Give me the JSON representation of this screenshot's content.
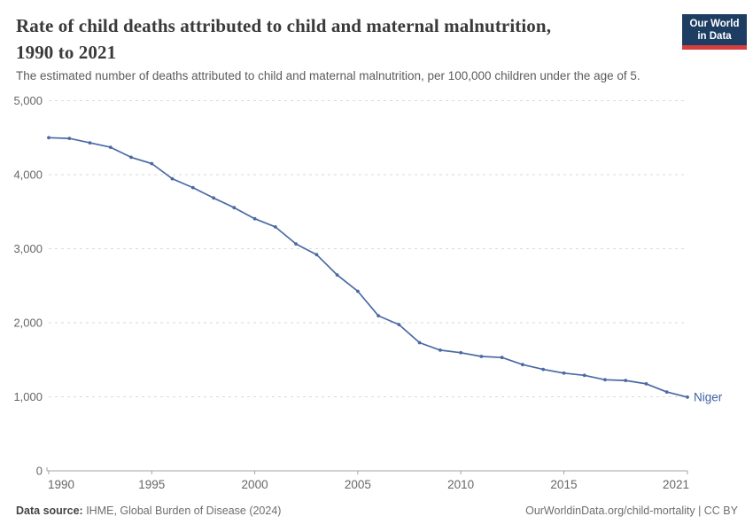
{
  "header": {
    "title_lines": [
      "Rate of child deaths attributed to child and maternal malnutrition,",
      "1990 to 2021"
    ],
    "subtitle": "The estimated number of deaths attributed to child and maternal malnutrition, per 100,000 children under the age of 5.",
    "logo": {
      "line1": "Our World",
      "line2": "in Data",
      "bg_color": "#1d3d63",
      "stripe_color": "#d93e3e"
    }
  },
  "chart_data": {
    "type": "line",
    "title": "Rate of child deaths attributed to child and maternal malnutrition, 1990 to 2021",
    "xlabel": "",
    "ylabel": "",
    "xlim": [
      1990,
      2021
    ],
    "ylim": [
      0,
      5000
    ],
    "grid": "horizontal-dashed",
    "legend": "end-of-line-label",
    "x_ticks": [
      1990,
      1995,
      2000,
      2005,
      2010,
      2015,
      2021
    ],
    "x_tick_labels": [
      "1990",
      "1995",
      "2000",
      "2005",
      "2010",
      "2015",
      "2021"
    ],
    "y_ticks": [
      0,
      1000,
      2000,
      3000,
      4000,
      5000
    ],
    "y_tick_labels": [
      "0",
      "1,000",
      "2,000",
      "3,000",
      "4,000",
      "5,000"
    ],
    "x": [
      1990,
      1991,
      1992,
      1993,
      1994,
      1995,
      1996,
      1997,
      1998,
      1999,
      2000,
      2001,
      2002,
      2003,
      2004,
      2005,
      2006,
      2007,
      2008,
      2009,
      2010,
      2011,
      2012,
      2013,
      2014,
      2015,
      2016,
      2017,
      2018,
      2019,
      2020,
      2021
    ],
    "series": [
      {
        "name": "Niger",
        "color": "#4a69a4",
        "values": [
          4500,
          4490,
          4430,
          4370,
          4235,
          4150,
          3945,
          3825,
          3685,
          3555,
          3405,
          3295,
          3065,
          2920,
          2645,
          2425,
          2095,
          1975,
          1730,
          1630,
          1595,
          1545,
          1530,
          1435,
          1370,
          1320,
          1290,
          1230,
          1220,
          1175,
          1065,
          995
        ]
      }
    ]
  },
  "colors": {
    "series_blue": "#4a69a4",
    "entity_label": "#3f62a1",
    "grid_line": "#dadada",
    "axis_line": "#a3a3a3",
    "tick_text": "#666666",
    "title_text": "#3a3a3a",
    "logo_navy": "#1d3d63",
    "logo_red": "#d93e3e"
  },
  "footer": {
    "source_label": "Data source:",
    "source_text": " IHME, Global Burden of Disease (2024)",
    "credit": "OurWorldinData.org/child-mortality | CC BY"
  }
}
